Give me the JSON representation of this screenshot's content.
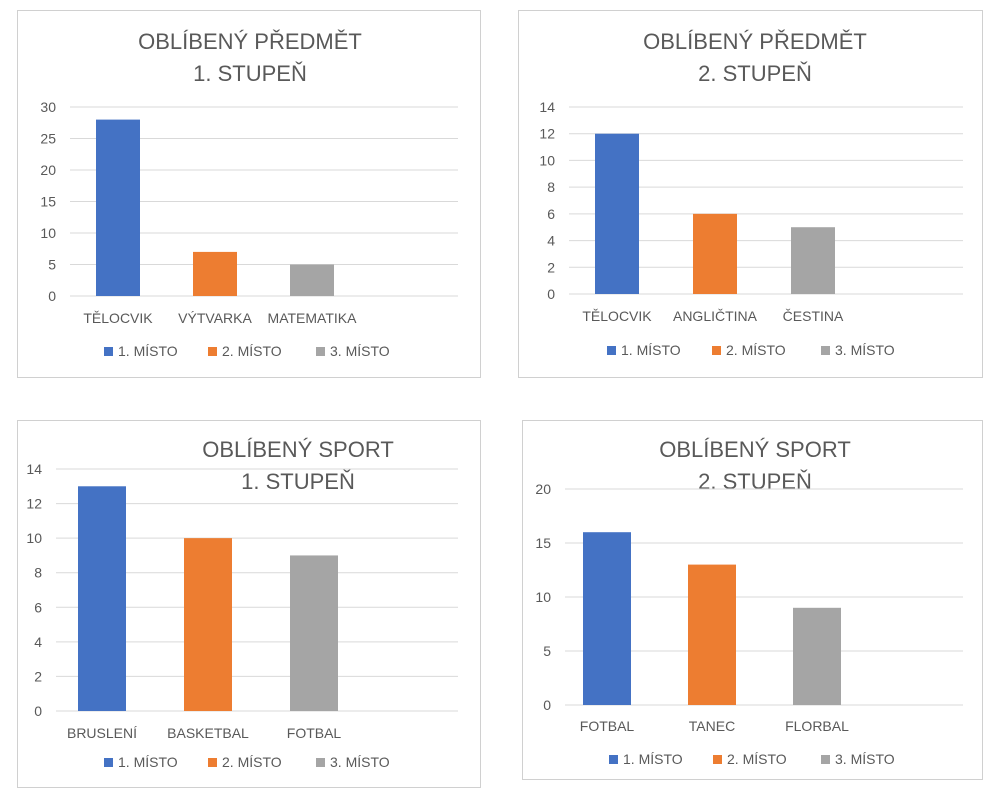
{
  "chart_data": [
    {
      "type": "bar",
      "title": [
        "OBLÍBENÝ PŘEDMĚT",
        "1. STUPEŇ"
      ],
      "categories": [
        "TĚLOCVIK",
        "VÝTVARKA",
        "MATEMATIKA"
      ],
      "values": [
        28,
        7,
        5
      ],
      "colors": [
        "#4472c4",
        "#ed7d31",
        "#a5a5a5"
      ],
      "ylim": [
        0,
        30
      ],
      "yticks": [
        0,
        5,
        10,
        15,
        20,
        25,
        30
      ],
      "grid": true,
      "legend": {
        "position": "bottom",
        "labels": [
          "1. MÍSTO",
          "2. MÍSTO",
          "3. MÍSTO"
        ]
      }
    },
    {
      "type": "bar",
      "title": [
        "OBLÍBENÝ PŘEDMĚT",
        "2. STUPEŇ"
      ],
      "categories": [
        "TĚLOCVIK",
        "ANGLIČTINA",
        "ČESTINA"
      ],
      "values": [
        12,
        6,
        5
      ],
      "colors": [
        "#4472c4",
        "#ed7d31",
        "#a5a5a5"
      ],
      "ylim": [
        0,
        14
      ],
      "yticks": [
        0,
        2,
        4,
        6,
        8,
        10,
        12,
        14
      ],
      "grid": true,
      "legend": {
        "position": "bottom",
        "labels": [
          "1. MÍSTO",
          "2. MÍSTO",
          "3. MÍSTO"
        ]
      }
    },
    {
      "type": "bar",
      "title": [
        "OBLÍBENÝ SPORT",
        "1. STUPEŇ"
      ],
      "categories": [
        "BRUSLENÍ",
        "BASKETBAL",
        "FOTBAL"
      ],
      "values": [
        13,
        10,
        9
      ],
      "colors": [
        "#4472c4",
        "#ed7d31",
        "#a5a5a5"
      ],
      "ylim": [
        0,
        14
      ],
      "yticks": [
        0,
        2,
        4,
        6,
        8,
        10,
        12,
        14
      ],
      "grid": true,
      "legend": {
        "position": "bottom",
        "labels": [
          "1. MÍSTO",
          "2. MÍSTO",
          "3. MÍSTO"
        ]
      }
    },
    {
      "type": "bar",
      "title": [
        "OBLÍBENÝ SPORT",
        "2. STUPEŇ"
      ],
      "categories": [
        "FOTBAL",
        "TANEC",
        "FLORBAL"
      ],
      "values": [
        16,
        13,
        9
      ],
      "colors": [
        "#4472c4",
        "#ed7d31",
        "#a5a5a5"
      ],
      "ylim": [
        0,
        20
      ],
      "yticks": [
        0,
        5,
        10,
        15,
        20
      ],
      "grid": true,
      "legend": {
        "position": "bottom",
        "labels": [
          "1. MÍSTO",
          "2. MÍSTO",
          "3. MÍSTO"
        ]
      }
    }
  ]
}
